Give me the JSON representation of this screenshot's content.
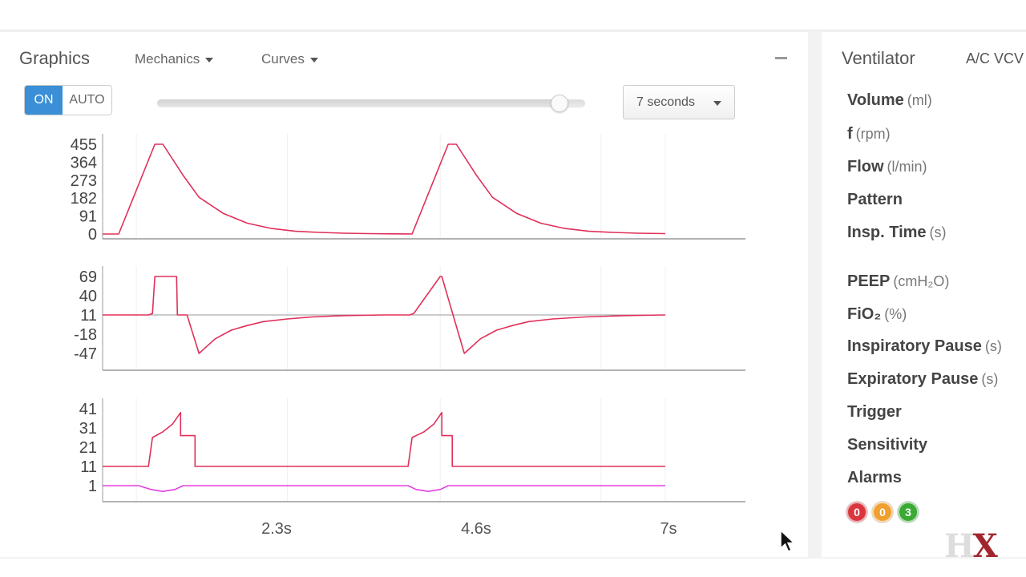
{
  "graphics": {
    "title": "Graphics",
    "dropdowns": [
      {
        "label": "Mechanics"
      },
      {
        "label": "Curves"
      }
    ],
    "toggle": {
      "on_label": "ON",
      "auto_label": "AUTO",
      "selected": "ON"
    },
    "time_slider": {
      "value_fraction": 0.94
    },
    "time_window": {
      "selected": "7 seconds"
    },
    "x_ticks": [
      "2.3s",
      "4.6s",
      "7s"
    ]
  },
  "chart_data": [
    {
      "type": "line",
      "y_ticks": [
        "455",
        "364",
        "273",
        "182",
        "91",
        "0"
      ],
      "ylim": [
        0,
        455
      ],
      "series": [
        {
          "color": "#e0305a",
          "x": [
            0,
            0.2,
            0.65,
            0.75,
            1.0,
            1.2,
            1.5,
            1.8,
            2.1,
            2.4,
            2.7,
            3.0,
            3.3,
            3.6,
            3.85,
            4.3,
            4.4,
            4.65,
            4.85,
            5.15,
            5.45,
            5.75,
            6.05,
            6.35,
            6.65,
            7.0
          ],
          "y": [
            0,
            0,
            455,
            455,
            298,
            186,
            105,
            55,
            28,
            14,
            8,
            4,
            2,
            1,
            0,
            455,
            455,
            298,
            186,
            105,
            55,
            28,
            14,
            8,
            4,
            2
          ]
        }
      ]
    },
    {
      "type": "line",
      "y_ticks": [
        "69",
        "40",
        "11",
        "-18",
        "-47"
      ],
      "ylim": [
        -47,
        69
      ],
      "series": [
        {
          "color": "#e0305a",
          "x": [
            0,
            0.57,
            0.62,
            0.65,
            0.92,
            0.93,
            1.05,
            1.2,
            1.4,
            1.6,
            1.8,
            2.0,
            2.3,
            2.6,
            3.0,
            3.5,
            3.82,
            3.87,
            4.2,
            4.22,
            4.36,
            4.5,
            4.7,
            4.9,
            5.1,
            5.3,
            5.6,
            6.0,
            6.5,
            7.0
          ],
          "y": [
            11,
            11,
            13,
            69,
            69,
            11,
            11,
            -47,
            -25,
            -12,
            -5,
            1,
            5,
            8,
            10,
            11,
            11,
            13,
            69,
            69,
            11,
            -47,
            -25,
            -12,
            -5,
            1,
            5,
            8,
            10,
            11
          ]
        }
      ]
    },
    {
      "type": "line",
      "y_ticks": [
        "41",
        "31",
        "21",
        "11",
        "1"
      ],
      "ylim": [
        1,
        41
      ],
      "series": [
        {
          "color": "#e0305a",
          "x": [
            0,
            0.57,
            0.62,
            0.75,
            0.87,
            0.97,
            0.97,
            1.15,
            1.15,
            2.3,
            3.8,
            3.85,
            4.0,
            4.12,
            4.22,
            4.22,
            4.35,
            4.35,
            7.0
          ],
          "y": [
            11,
            11,
            26,
            29,
            33,
            39,
            27,
            27,
            11,
            11,
            11,
            26,
            29,
            33,
            39,
            27,
            27,
            11,
            11
          ]
        },
        {
          "color": "#e040e0",
          "x": [
            0,
            0.45,
            0.6,
            0.75,
            0.9,
            1.0,
            1.1,
            3.8,
            3.9,
            4.05,
            4.2,
            4.3,
            4.4,
            7.0
          ],
          "y": [
            1,
            1,
            -1,
            -2,
            -1,
            1,
            1,
            1,
            -1,
            -2,
            -1,
            1,
            1,
            1
          ]
        }
      ]
    }
  ],
  "ventilator": {
    "title": "Ventilator",
    "mode": "A/C VCV",
    "settings": [
      {
        "label": "Volume",
        "unit": "(ml)"
      },
      {
        "label": "f",
        "unit": "(rpm)"
      },
      {
        "label": "Flow",
        "unit": "(l/min)"
      },
      {
        "label": "Pattern",
        "unit": ""
      },
      {
        "label": "Insp. Time",
        "unit": "(s)"
      },
      {
        "label": "PEEP",
        "unit": "(cmH₂O)"
      },
      {
        "label": "FiO₂",
        "unit": "(%)"
      },
      {
        "label": "Inspiratory Pause",
        "unit": "(s)"
      },
      {
        "label": "Expiratory Pause",
        "unit": "(s)"
      },
      {
        "label": "Trigger",
        "unit": ""
      },
      {
        "label": "Sensitivity",
        "unit": ""
      },
      {
        "label": "Alarms",
        "unit": ""
      }
    ],
    "alarm_counts": [
      {
        "count": "0",
        "color": "#d9363e"
      },
      {
        "count": "0",
        "color": "#f0a030"
      },
      {
        "count": "3",
        "color": "#3aaa35"
      }
    ]
  },
  "logo": {
    "text": "HX",
    "colors": [
      "#dddddd",
      "#a2272d"
    ]
  }
}
